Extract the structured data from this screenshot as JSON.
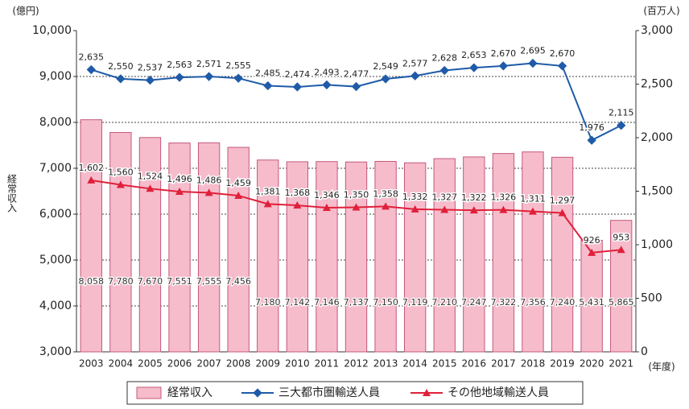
{
  "chart_data": {
    "type": "bar",
    "y_unit": "(億円)",
    "y2_unit": "(百万人)",
    "x_unit": "(年度)",
    "y_label": "経常収入",
    "categories": [
      "2003",
      "2004",
      "2005",
      "2006",
      "2007",
      "2008",
      "2009",
      "2010",
      "2011",
      "2012",
      "2013",
      "2014",
      "2015",
      "2016",
      "2017",
      "2018",
      "2019",
      "2020",
      "2021"
    ],
    "ylim": [
      3000,
      10000
    ],
    "yticks": [
      {
        "value": 3000,
        "label": "3,000"
      },
      {
        "value": 4000,
        "label": "4,000"
      },
      {
        "value": 5000,
        "label": "5,000"
      },
      {
        "value": 6000,
        "label": "6,000"
      },
      {
        "value": 7000,
        "label": "7,000"
      },
      {
        "value": 8000,
        "label": "8,000"
      },
      {
        "value": 9000,
        "label": "9,000"
      },
      {
        "value": 10000,
        "label": "10,000"
      }
    ],
    "y2lim": [
      0,
      3000
    ],
    "y2ticks": [
      0,
      500,
      {
        "value": 1000,
        "label": "1,000"
      },
      {
        "value": 1500,
        "label": "1,500"
      },
      {
        "value": 2000,
        "label": "2,000"
      },
      {
        "value": 2500,
        "label": "2,500"
      },
      {
        "value": 3000,
        "label": "3,000"
      }
    ],
    "grid": true,
    "series": [
      {
        "name": "経常収入",
        "type": "bar",
        "color": "#f6bccb",
        "values": [
          8058,
          7780,
          7670,
          7551,
          7555,
          7456,
          7180,
          7142,
          7146,
          7137,
          7150,
          7119,
          7210,
          7247,
          7322,
          7356,
          7240,
          5431,
          5865
        ],
        "value_labels": [
          "8,058",
          "7,780",
          "7,670",
          "7,551",
          "7,555",
          "7,456",
          "7,180",
          "7,142",
          "7,146",
          "7,137",
          "7,150",
          "7,119",
          "7,210",
          "7,247",
          "7,322",
          "7,356",
          "7,240",
          "5,431",
          "5,865"
        ]
      },
      {
        "name": "三大都市圏輸送人員",
        "type": "line",
        "axis": "y2",
        "color": "#1f5ba8",
        "values": [
          2635,
          2550,
          2537,
          2563,
          2571,
          2555,
          2485,
          2474,
          2493,
          2477,
          2549,
          2577,
          2628,
          2653,
          2670,
          2695,
          2670,
          1976,
          2115
        ],
        "value_labels": [
          "2,635",
          "2,550",
          "2,537",
          "2,563",
          "2,571",
          "2,555",
          "2,485",
          "2,474",
          "2,493",
          "2,477",
          "2,549",
          "2,577",
          "2,628",
          "2,653",
          "2,670",
          "2,695",
          "2,670",
          "1,976",
          "2,115"
        ]
      },
      {
        "name": "その他地域輸送人員",
        "type": "line",
        "axis": "y2",
        "color": "#e0203a",
        "values": [
          1602,
          1560,
          1524,
          1496,
          1486,
          1459,
          1381,
          1368,
          1346,
          1350,
          1358,
          1332,
          1327,
          1322,
          1326,
          1311,
          1297,
          926,
          953
        ],
        "value_labels": [
          "1,602",
          "1,560",
          "1,524",
          "1,496",
          "1,486",
          "1,459",
          "1,381",
          "1,368",
          "1,346",
          "1,350",
          "1,358",
          "1,332",
          "1,327",
          "1,322",
          "1,326",
          "1,311",
          "1,297",
          "926",
          "953"
        ]
      }
    ]
  }
}
